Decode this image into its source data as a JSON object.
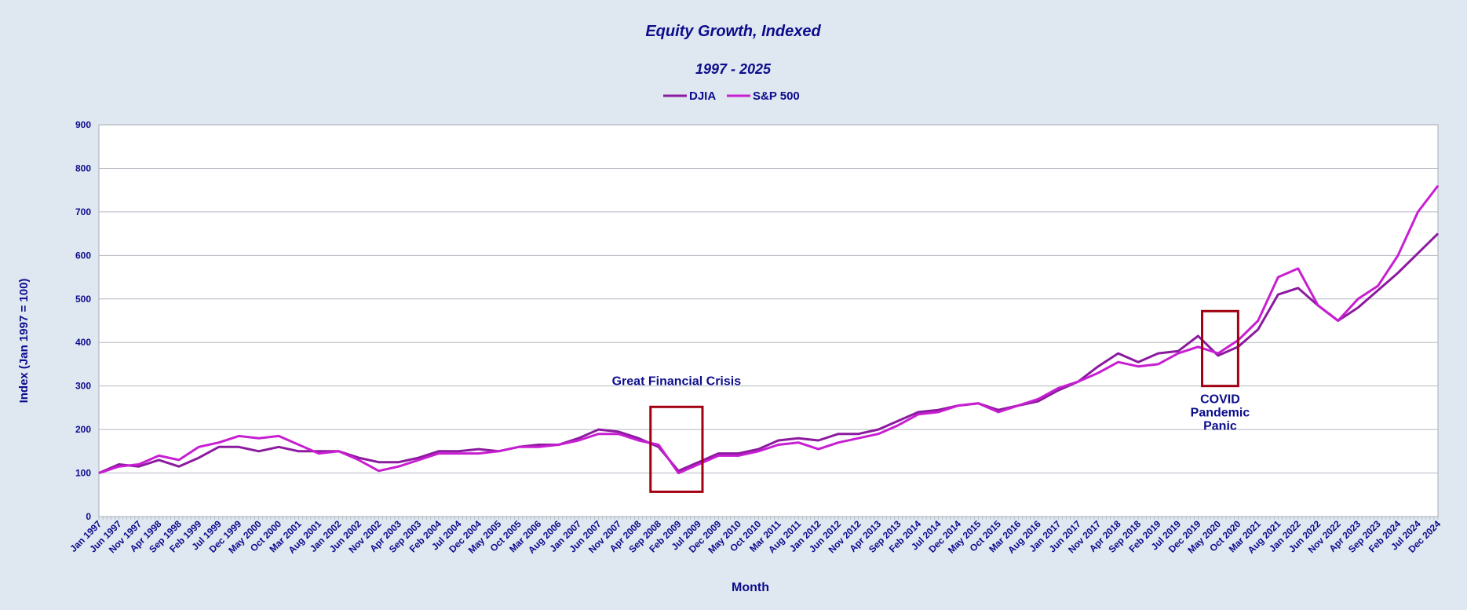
{
  "chart_data": {
    "type": "line",
    "title": "Equity Growth, Indexed",
    "subtitle": "1997 - 2025",
    "xlabel": "Month",
    "ylabel": "Index (Jan 1997 = 100)",
    "ylim": [
      0,
      900
    ],
    "y_ticks": [
      "0",
      "100",
      "200",
      "300",
      "400",
      "500",
      "600",
      "700",
      "800",
      "900"
    ],
    "grid": "horizontal",
    "legend_position": "top-center",
    "x_tick_labels": [
      "Jan 1997",
      "Jun 1997",
      "Nov 1997",
      "Apr 1998",
      "Sep 1998",
      "Feb 1999",
      "Jul 1999",
      "Dec 1999",
      "May 2000",
      "Oct 2000",
      "Mar 2001",
      "Aug 2001",
      "Jan 2002",
      "Jun 2002",
      "Nov 2002",
      "Apr 2003",
      "Sep 2003",
      "Feb 2004",
      "Jul 2004",
      "Dec 2004",
      "May 2005",
      "Oct 2005",
      "Mar 2006",
      "Aug 2006",
      "Jan 2007",
      "Jun 2007",
      "Nov 2007",
      "Apr 2008",
      "Sep 2008",
      "Feb 2009",
      "Jul 2009",
      "Dec 2009",
      "May 2010",
      "Oct 2010",
      "Mar 2011",
      "Aug 2011",
      "Jan 2012",
      "Jun 2012",
      "Nov 2012",
      "Apr 2013",
      "Sep 2013",
      "Feb 2014",
      "Jul 2014",
      "Dec 2014",
      "May 2015",
      "Oct 2015",
      "Mar 2016",
      "Aug 2016",
      "Jan 2017",
      "Jun 2017",
      "Nov 2017",
      "Apr 2018",
      "Sep 2018",
      "Feb 2019",
      "Jul 2019",
      "Dec 2019",
      "May 2020",
      "Oct 2020",
      "Mar 2021",
      "Aug 2021",
      "Jan 2022",
      "Jun 2022",
      "Nov 2022",
      "Apr 2023",
      "Sep 2023",
      "Feb 2024",
      "Jul 2024",
      "Dec 2024"
    ],
    "x_first": "Jan 1997",
    "x_last": "Dec 2024",
    "series": [
      {
        "name": "DJIA",
        "color": "#8b1a9e",
        "x": [
          "Jan 1997",
          "Jun 1997",
          "Nov 1997",
          "Apr 1998",
          "Sep 1998",
          "Feb 1999",
          "Jul 1999",
          "Dec 1999",
          "May 2000",
          "Oct 2000",
          "Mar 2001",
          "Aug 2001",
          "Jan 2002",
          "Jun 2002",
          "Nov 2002",
          "Apr 2003",
          "Sep 2003",
          "Feb 2004",
          "Jul 2004",
          "Dec 2004",
          "May 2005",
          "Oct 2005",
          "Mar 2006",
          "Aug 2006",
          "Jan 2007",
          "Jun 2007",
          "Nov 2007",
          "Apr 2008",
          "Sep 2008",
          "Feb 2009",
          "Jul 2009",
          "Dec 2009",
          "May 2010",
          "Oct 2010",
          "Mar 2011",
          "Aug 2011",
          "Jan 2012",
          "Jun 2012",
          "Nov 2012",
          "Apr 2013",
          "Sep 2013",
          "Feb 2014",
          "Jul 2014",
          "Dec 2014",
          "May 2015",
          "Oct 2015",
          "Mar 2016",
          "Aug 2016",
          "Jan 2017",
          "Jun 2017",
          "Nov 2017",
          "Apr 2018",
          "Sep 2018",
          "Feb 2019",
          "Jul 2019",
          "Dec 2019",
          "May 2020",
          "Oct 2020",
          "Mar 2021",
          "Aug 2021",
          "Jan 2022",
          "Jun 2022",
          "Nov 2022",
          "Apr 2023",
          "Sep 2023",
          "Feb 2024",
          "Jul 2024",
          "Dec 2024"
        ],
        "values": [
          100,
          120,
          115,
          130,
          115,
          135,
          160,
          160,
          150,
          160,
          150,
          150,
          150,
          135,
          125,
          125,
          135,
          150,
          150,
          155,
          150,
          160,
          165,
          165,
          180,
          200,
          195,
          180,
          160,
          105,
          125,
          145,
          145,
          155,
          175,
          180,
          175,
          190,
          190,
          200,
          220,
          240,
          245,
          255,
          260,
          245,
          255,
          265,
          290,
          310,
          345,
          375,
          355,
          375,
          380,
          415,
          370,
          390,
          430,
          510,
          525,
          485,
          450,
          480,
          520,
          560,
          605,
          650
        ]
      },
      {
        "name": "S&P 500",
        "color": "#c81ed2",
        "x": [
          "Jan 1997",
          "Jun 1997",
          "Nov 1997",
          "Apr 1998",
          "Sep 1998",
          "Feb 1999",
          "Jul 1999",
          "Dec 1999",
          "May 2000",
          "Oct 2000",
          "Mar 2001",
          "Aug 2001",
          "Jan 2002",
          "Jun 2002",
          "Nov 2002",
          "Apr 2003",
          "Sep 2003",
          "Feb 2004",
          "Jul 2004",
          "Dec 2004",
          "May 2005",
          "Oct 2005",
          "Mar 2006",
          "Aug 2006",
          "Jan 2007",
          "Jun 2007",
          "Nov 2007",
          "Apr 2008",
          "Sep 2008",
          "Feb 2009",
          "Jul 2009",
          "Dec 2009",
          "May 2010",
          "Oct 2010",
          "Mar 2011",
          "Aug 2011",
          "Jan 2012",
          "Jun 2012",
          "Nov 2012",
          "Apr 2013",
          "Sep 2013",
          "Feb 2014",
          "Jul 2014",
          "Dec 2014",
          "May 2015",
          "Oct 2015",
          "Mar 2016",
          "Aug 2016",
          "Jan 2017",
          "Jun 2017",
          "Nov 2017",
          "Apr 2018",
          "Sep 2018",
          "Feb 2019",
          "Jul 2019",
          "Dec 2019",
          "May 2020",
          "Oct 2020",
          "Mar 2021",
          "Aug 2021",
          "Jan 2022",
          "Jun 2022",
          "Nov 2022",
          "Apr 2023",
          "Sep 2023",
          "Feb 2024",
          "Jul 2024",
          "Dec 2024"
        ],
        "values": [
          100,
          115,
          120,
          140,
          130,
          160,
          170,
          185,
          180,
          185,
          165,
          145,
          150,
          130,
          105,
          115,
          130,
          145,
          145,
          145,
          150,
          160,
          160,
          165,
          175,
          190,
          190,
          175,
          165,
          100,
          120,
          140,
          140,
          150,
          165,
          170,
          155,
          170,
          180,
          190,
          210,
          235,
          240,
          255,
          260,
          240,
          255,
          270,
          295,
          310,
          330,
          355,
          345,
          350,
          375,
          390,
          375,
          405,
          450,
          550,
          570,
          485,
          450,
          500,
          530,
          600,
          700,
          760
        ]
      }
    ],
    "annotations": [
      {
        "label_lines": [
          "Great Financial Crisis"
        ],
        "x_from": "Jul 2008",
        "x_to": "Aug 2009",
        "y_from": 57,
        "y_to": 252,
        "label_position": "above"
      },
      {
        "label_lines": [
          "COVID",
          "Pandemic",
          "Panic"
        ],
        "x_from": "Jan 2020",
        "x_to": "Oct 2020",
        "y_from": 300,
        "y_to": 472,
        "label_position": "below"
      }
    ],
    "annotation_color": "#a00010"
  }
}
